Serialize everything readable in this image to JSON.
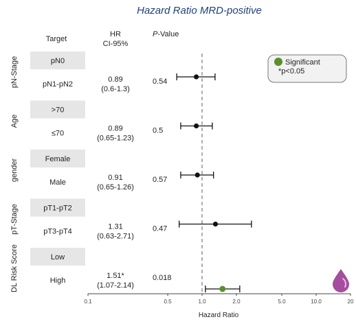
{
  "colors": {
    "significant": "#5a8f2c",
    "point": "#111111",
    "title": "#1f3f7a",
    "drop": "#a54d9e"
  },
  "header": {
    "target": "Target",
    "hr_line1": "HR",
    "hr_line2": "CI-95%",
    "p_prefix": "P",
    "p_suffix": "-Value"
  },
  "legend": {
    "label": "Significant",
    "note": "*p<0.05"
  },
  "decoration": {
    "icon": "drop-icon"
  },
  "chart_data": {
    "type": "forest",
    "title": "Hazard Ratio MRD-positive",
    "xlabel": "Hazard Ratio",
    "xscale": "log",
    "xlim": [
      0.1,
      20
    ],
    "xticks": [
      "0.1",
      "0.5",
      "1.0",
      "2.0",
      "5.0",
      "10.0",
      "20"
    ],
    "reference_line": 1.0,
    "groups": [
      {
        "name": "pN-Stage",
        "reference": "pN0",
        "comparison": "pN1-pN2",
        "hr": 0.89,
        "lower": 0.6,
        "upper": 1.3,
        "hr_text": "0.89",
        "ci_text": "(0.6-1.3)",
        "p_value": "0.54",
        "significant": false
      },
      {
        "name": "Age",
        "reference": ">70",
        "comparison": "≤70",
        "hr": 0.89,
        "lower": 0.65,
        "upper": 1.23,
        "hr_text": "0.89",
        "ci_text": "(0.65-1.23)",
        "p_value": "0.5",
        "significant": false
      },
      {
        "name": "gender",
        "reference": "Female",
        "comparison": "Male",
        "hr": 0.91,
        "lower": 0.65,
        "upper": 1.26,
        "hr_text": "0.91",
        "ci_text": "(0.65-1.26)",
        "p_value": "0.57",
        "significant": false
      },
      {
        "name": "pT-Stage",
        "reference": "pT1-pT2",
        "comparison": "pT3-pT4",
        "hr": 1.31,
        "lower": 0.63,
        "upper": 2.71,
        "hr_text": "1.31",
        "ci_text": "(0.63-2.71)",
        "p_value": "0.47",
        "significant": false
      },
      {
        "name": "DL Risk Score",
        "reference": "Low",
        "comparison": "High",
        "hr": 1.51,
        "lower": 1.07,
        "upper": 2.14,
        "hr_text": "1.51*",
        "ci_text": "(1.07-2.14)",
        "p_value": "0.018",
        "significant": true
      }
    ]
  }
}
